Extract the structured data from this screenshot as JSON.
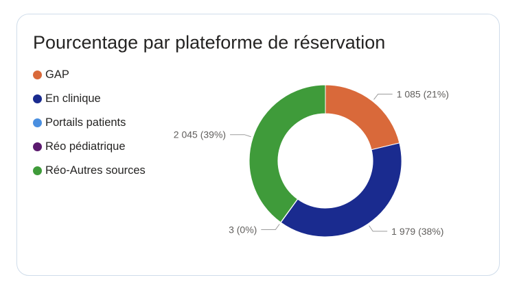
{
  "colors": {
    "border": "#cfdcea",
    "leader_line": "#9b9b9b",
    "label_text": "#605e5c"
  },
  "chart_data": {
    "type": "pie",
    "variant": "donut",
    "title": "Pourcentage par plateforme de réservation",
    "legend_position": "left",
    "series": [
      {
        "name": "GAP",
        "value": 1085,
        "label": "1 085 (21%)",
        "color": "#d9693a"
      },
      {
        "name": "En clinique",
        "value": 1979,
        "label": "1 979 (38%)",
        "color": "#1a2b8f"
      },
      {
        "name": "Portails patients",
        "value": 0,
        "label": "",
        "color": "#4a8fe0"
      },
      {
        "name": "Réo pédiatrique",
        "value": 3,
        "label": "3 (0%)",
        "color": "#5b1a6e"
      },
      {
        "name": "Réo-Autres sources",
        "value": 2045,
        "label": "2 045 (39%)",
        "color": "#3f9b3a"
      }
    ]
  }
}
